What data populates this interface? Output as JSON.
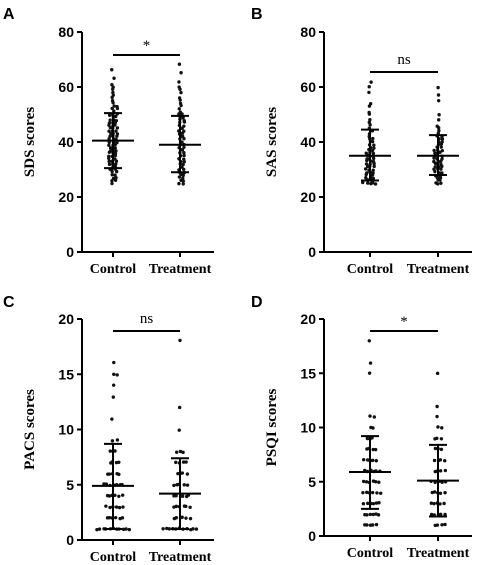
{
  "chart_data": [
    {
      "panel": "A",
      "type": "scatter",
      "ylabel": "SDS scores",
      "ylim": [
        0,
        80
      ],
      "yticks": [
        "0",
        "20",
        "40",
        "60",
        "80"
      ],
      "categories": [
        "Control",
        "Treatment"
      ],
      "significance": "*",
      "series": [
        {
          "category": "Control",
          "mean": 40.5,
          "sd_low": 30.5,
          "sd_high": 50.5,
          "values": [
            66,
            63,
            61,
            60,
            59,
            58,
            57,
            56,
            55,
            54,
            53,
            53,
            52,
            52,
            51,
            50,
            50,
            50,
            49,
            49,
            48,
            48,
            48,
            47,
            47,
            47,
            46,
            46,
            46,
            45,
            45,
            45,
            44,
            44,
            44,
            43,
            43,
            43,
            42,
            42,
            42,
            41,
            41,
            41,
            40,
            40,
            40,
            39,
            39,
            39,
            38,
            38,
            38,
            37,
            37,
            37,
            36,
            36,
            36,
            35,
            35,
            35,
            34,
            34,
            34,
            33,
            33,
            33,
            32,
            32,
            32,
            31,
            31,
            30,
            30,
            30,
            29,
            29,
            28,
            28,
            27,
            27,
            26,
            26,
            25
          ]
        },
        {
          "category": "Treatment",
          "mean": 39,
          "sd_low": 29,
          "sd_high": 49.5,
          "values": [
            68,
            65,
            62,
            60,
            59,
            58,
            56,
            55,
            54,
            53,
            52,
            51,
            50,
            50,
            49,
            49,
            48,
            48,
            47,
            47,
            46,
            46,
            45,
            45,
            44,
            44,
            43,
            43,
            42,
            42,
            41,
            41,
            40,
            40,
            39,
            39,
            38,
            38,
            37,
            37,
            36,
            36,
            35,
            35,
            34,
            34,
            33,
            33,
            32,
            32,
            31,
            31,
            30,
            30,
            29,
            29,
            28,
            28,
            27,
            27,
            26,
            26,
            25,
            25
          ]
        }
      ]
    },
    {
      "panel": "B",
      "type": "scatter",
      "ylabel": "SAS scores",
      "ylim": [
        0,
        80
      ],
      "yticks": [
        "0",
        "20",
        "40",
        "60",
        "80"
      ],
      "categories": [
        "Control",
        "Treatment"
      ],
      "significance": "ns",
      "series": [
        {
          "category": "Control",
          "mean": 35,
          "sd_low": 26,
          "sd_high": 44.5,
          "values": [
            62,
            60,
            58,
            54,
            53,
            51,
            50,
            48,
            47,
            46,
            45,
            44,
            44,
            43,
            42,
            41,
            41,
            40,
            40,
            39,
            39,
            38,
            38,
            37,
            37,
            36,
            36,
            36,
            35,
            35,
            35,
            34,
            34,
            34,
            33,
            33,
            33,
            32,
            32,
            32,
            31,
            31,
            31,
            30,
            30,
            30,
            29,
            29,
            29,
            28,
            28,
            28,
            27,
            27,
            27,
            26,
            26,
            26,
            25,
            25,
            25,
            25,
            25
          ]
        },
        {
          "category": "Treatment",
          "mean": 35,
          "sd_low": 28,
          "sd_high": 42.5,
          "values": [
            60,
            57,
            55,
            50,
            48,
            46,
            45,
            44,
            43,
            42,
            42,
            41,
            41,
            40,
            40,
            39,
            39,
            38,
            38,
            37,
            37,
            37,
            36,
            36,
            36,
            35,
            35,
            35,
            34,
            34,
            34,
            33,
            33,
            33,
            32,
            32,
            32,
            31,
            31,
            31,
            30,
            30,
            30,
            29,
            29,
            29,
            28,
            28,
            28,
            27,
            27,
            26,
            26,
            25,
            25,
            25
          ]
        }
      ]
    },
    {
      "panel": "C",
      "type": "scatter",
      "ylabel": "PACS scores",
      "ylim": [
        0,
        20
      ],
      "yticks": [
        "0",
        "5",
        "10",
        "15",
        "20"
      ],
      "categories": [
        "Control",
        "Treatment"
      ],
      "significance": "ns",
      "series": [
        {
          "category": "Control",
          "mean": 4.9,
          "sd_low": 1,
          "sd_high": 8.7,
          "values": [
            16,
            15,
            15,
            14,
            13,
            11,
            9,
            9,
            8,
            8,
            8,
            7,
            7,
            7,
            7,
            6,
            6,
            6,
            6,
            6,
            5,
            5,
            5,
            5,
            5,
            5,
            5,
            4,
            4,
            4,
            4,
            4,
            4,
            3,
            3,
            3,
            3,
            3,
            3,
            2,
            2,
            2,
            2,
            2,
            2,
            1,
            1,
            1,
            1,
            1,
            1,
            1,
            1,
            1,
            1,
            1
          ]
        },
        {
          "category": "Treatment",
          "mean": 4.2,
          "sd_low": 1,
          "sd_high": 7.4,
          "values": [
            18,
            12,
            10,
            8,
            8,
            8,
            7,
            7,
            7,
            7,
            6,
            6,
            6,
            6,
            5,
            5,
            5,
            5,
            5,
            4,
            4,
            4,
            4,
            4,
            4,
            3,
            3,
            3,
            3,
            3,
            3,
            2,
            2,
            2,
            2,
            2,
            2,
            1,
            1,
            1,
            1,
            1,
            1,
            1,
            1,
            1,
            1,
            1
          ]
        }
      ]
    },
    {
      "panel": "D",
      "type": "scatter",
      "ylabel": "PSQI scores",
      "ylim": [
        0,
        20
      ],
      "yticks": [
        "0",
        "5",
        "10",
        "15",
        "20"
      ],
      "categories": [
        "Control",
        "Treatment"
      ],
      "significance": "*",
      "series": [
        {
          "category": "Control",
          "mean": 5.9,
          "sd_low": 2.5,
          "sd_high": 9.2,
          "values": [
            18,
            16,
            15,
            11,
            11,
            10,
            10,
            9,
            9,
            9,
            8,
            8,
            8,
            8,
            7,
            7,
            7,
            7,
            7,
            6,
            6,
            6,
            6,
            6,
            6,
            5,
            5,
            5,
            5,
            5,
            5,
            4,
            4,
            4,
            4,
            4,
            4,
            3,
            3,
            3,
            3,
            3,
            3,
            2,
            2,
            2,
            2,
            2,
            2,
            1,
            1,
            1,
            1,
            1
          ]
        },
        {
          "category": "Treatment",
          "mean": 5.1,
          "sd_low": 1.8,
          "sd_high": 8.4,
          "values": [
            15,
            12,
            11,
            10,
            10,
            9,
            9,
            9,
            8,
            8,
            8,
            7,
            7,
            7,
            7,
            6,
            6,
            6,
            6,
            5,
            5,
            5,
            5,
            5,
            4,
            4,
            4,
            4,
            4,
            3,
            3,
            3,
            3,
            3,
            2,
            2,
            2,
            2,
            2,
            1,
            1,
            1,
            1
          ]
        }
      ]
    }
  ]
}
